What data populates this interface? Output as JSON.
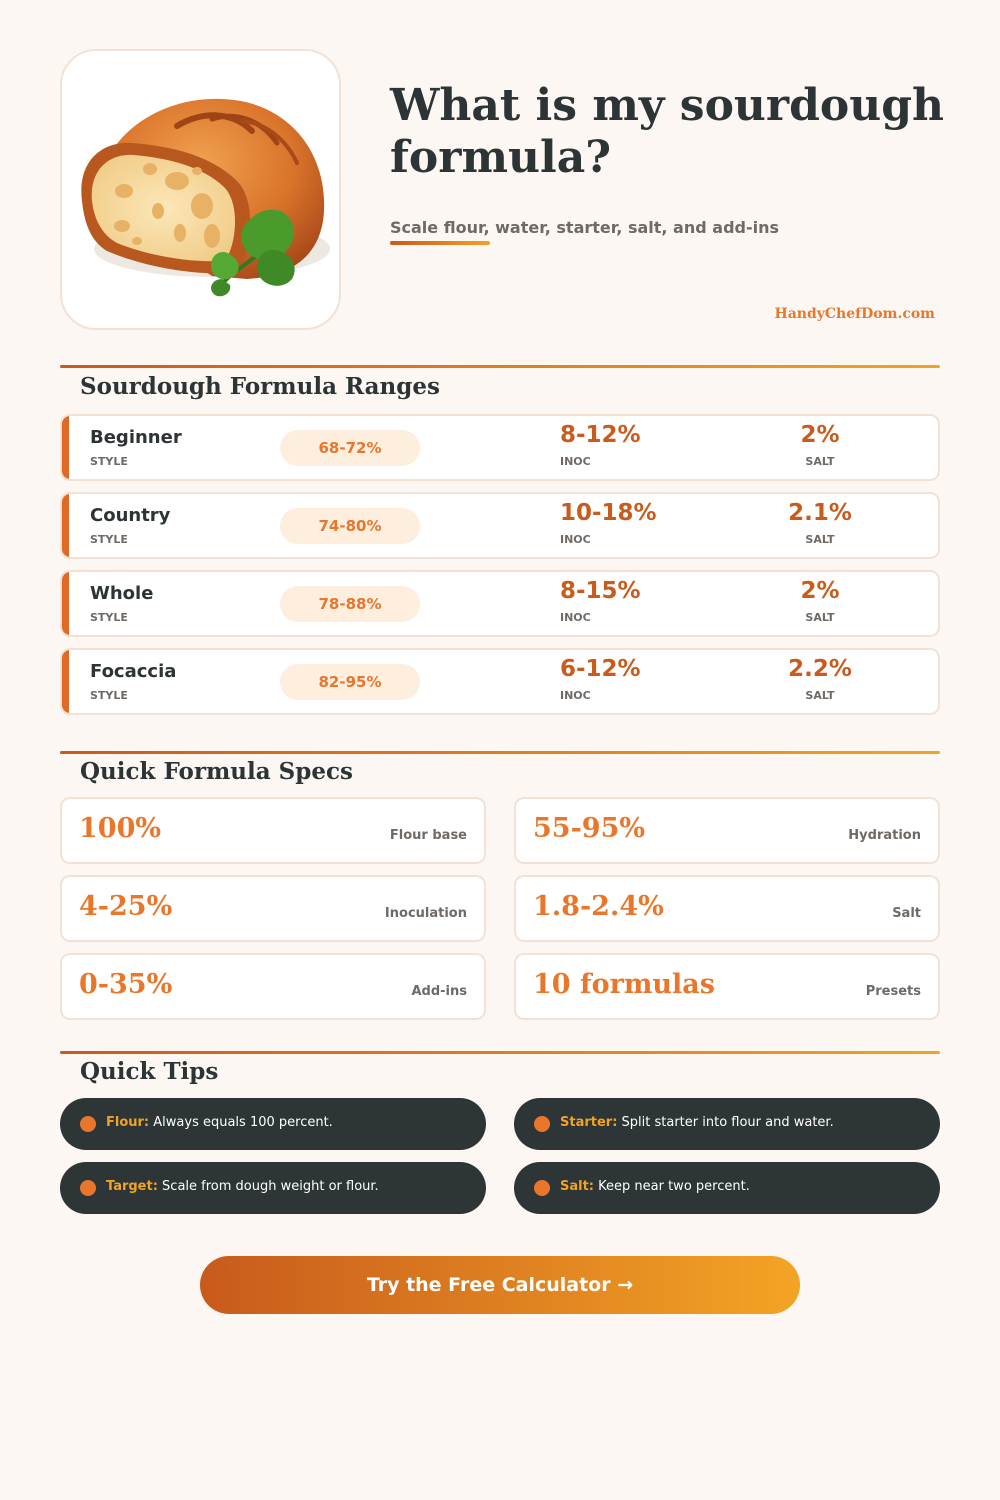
{
  "hero": {
    "title": "What is my sourdough formula?",
    "subtitle": "Scale flour, water, starter, salt, and add-ins",
    "brand": "HandyChefDom.com",
    "image_icon": "sourdough-loaf-icon"
  },
  "ranges": {
    "title": "Sourdough Formula Ranges",
    "style_label": "STYLE",
    "inoc_label": "INOC",
    "salt_label": "SALT",
    "rows": [
      {
        "name": "Beginner",
        "hydration": "68-72%",
        "inoc": "8-12%",
        "salt": "2%"
      },
      {
        "name": "Country",
        "hydration": "74-80%",
        "inoc": "10-18%",
        "salt": "2.1%"
      },
      {
        "name": "Whole",
        "hydration": "78-88%",
        "inoc": "8-15%",
        "salt": "2%"
      },
      {
        "name": "Focaccia",
        "hydration": "82-95%",
        "inoc": "6-12%",
        "salt": "2.2%"
      }
    ]
  },
  "specs": {
    "title": "Quick Formula Specs",
    "items": [
      {
        "value": "100%",
        "label": "Flour base"
      },
      {
        "value": "55-95%",
        "label": "Hydration"
      },
      {
        "value": "4-25%",
        "label": "Inoculation"
      },
      {
        "value": "1.8-2.4%",
        "label": "Salt"
      },
      {
        "value": "0-35%",
        "label": "Add-ins"
      },
      {
        "value": "10 formulas",
        "label": "Presets"
      }
    ]
  },
  "tips": {
    "title": "Quick Tips",
    "items": [
      {
        "key": "Flour:",
        "text": " Always equals 100 percent."
      },
      {
        "key": "Starter:",
        "text": " Split starter into flour and water."
      },
      {
        "key": "Target:",
        "text": " Scale from dough weight or flour."
      },
      {
        "key": "Salt:",
        "text": " Keep near two percent."
      }
    ]
  },
  "cta": {
    "label": "Try the Free Calculator →"
  },
  "colors": {
    "accent": "#e9772b",
    "accent_dark": "#c85a1c",
    "accent_light": "#f0a325",
    "dark": "#2d3537",
    "background": "#fcf7f2"
  }
}
